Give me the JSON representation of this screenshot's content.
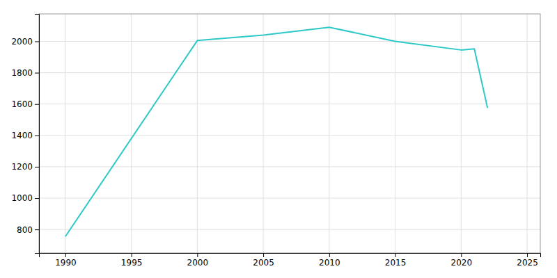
{
  "chart_data": {
    "type": "line",
    "x": [
      1990,
      2000,
      2005,
      2010,
      2015,
      2020,
      2021,
      2022
    ],
    "values": [
      755,
      2005,
      2040,
      2090,
      2000,
      1945,
      1952,
      1575
    ],
    "color": "#2dc8c8",
    "xlim": [
      1988,
      2026
    ],
    "ylim": [
      650,
      2175
    ],
    "xticks": [
      1990,
      1995,
      2000,
      2005,
      2010,
      2015,
      2020,
      2025
    ],
    "yticks": [
      800,
      1000,
      1200,
      1400,
      1600,
      1800,
      2000
    ],
    "grid": true
  }
}
